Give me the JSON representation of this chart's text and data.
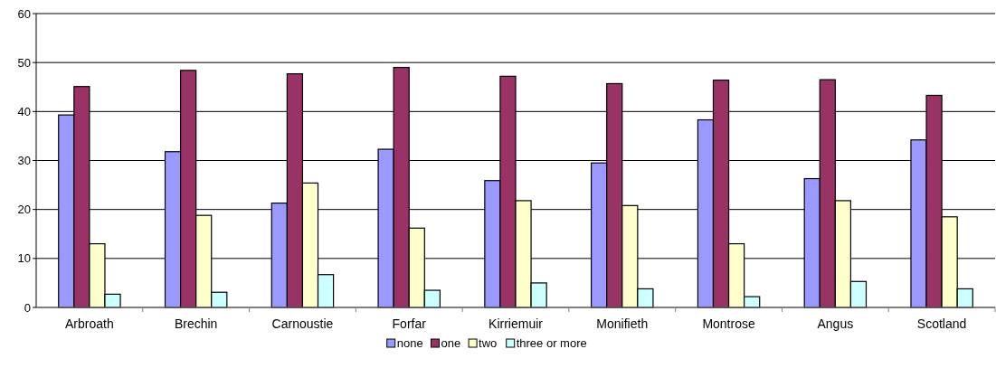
{
  "chart_data": {
    "type": "bar",
    "categories": [
      "Arbroath",
      "Brechin",
      "Carnoustie",
      "Forfar",
      "Kirriemuir",
      "Monifieth",
      "Montrose",
      "Angus",
      "Scotland"
    ],
    "series": [
      {
        "name": "none",
        "color": "#9999ff",
        "values": [
          39.3,
          31.8,
          21.3,
          32.3,
          25.9,
          29.5,
          38.3,
          26.3,
          34.2
        ]
      },
      {
        "name": "one",
        "color": "#993366",
        "values": [
          45.1,
          48.4,
          47.7,
          49.0,
          47.2,
          45.7,
          46.4,
          46.5,
          43.3
        ]
      },
      {
        "name": "two",
        "color": "#ffffcc",
        "values": [
          13.0,
          18.8,
          25.4,
          16.2,
          21.8,
          20.8,
          13.0,
          21.8,
          18.5
        ]
      },
      {
        "name": "three or more",
        "color": "#ccffff",
        "values": [
          2.7,
          3.1,
          6.7,
          3.5,
          5.0,
          3.8,
          2.2,
          5.3,
          3.8
        ]
      }
    ],
    "ylim": [
      0,
      60
    ],
    "yticks": [
      0,
      10,
      20,
      30,
      40,
      50,
      60
    ],
    "grid": "y",
    "legend": "bottom"
  }
}
